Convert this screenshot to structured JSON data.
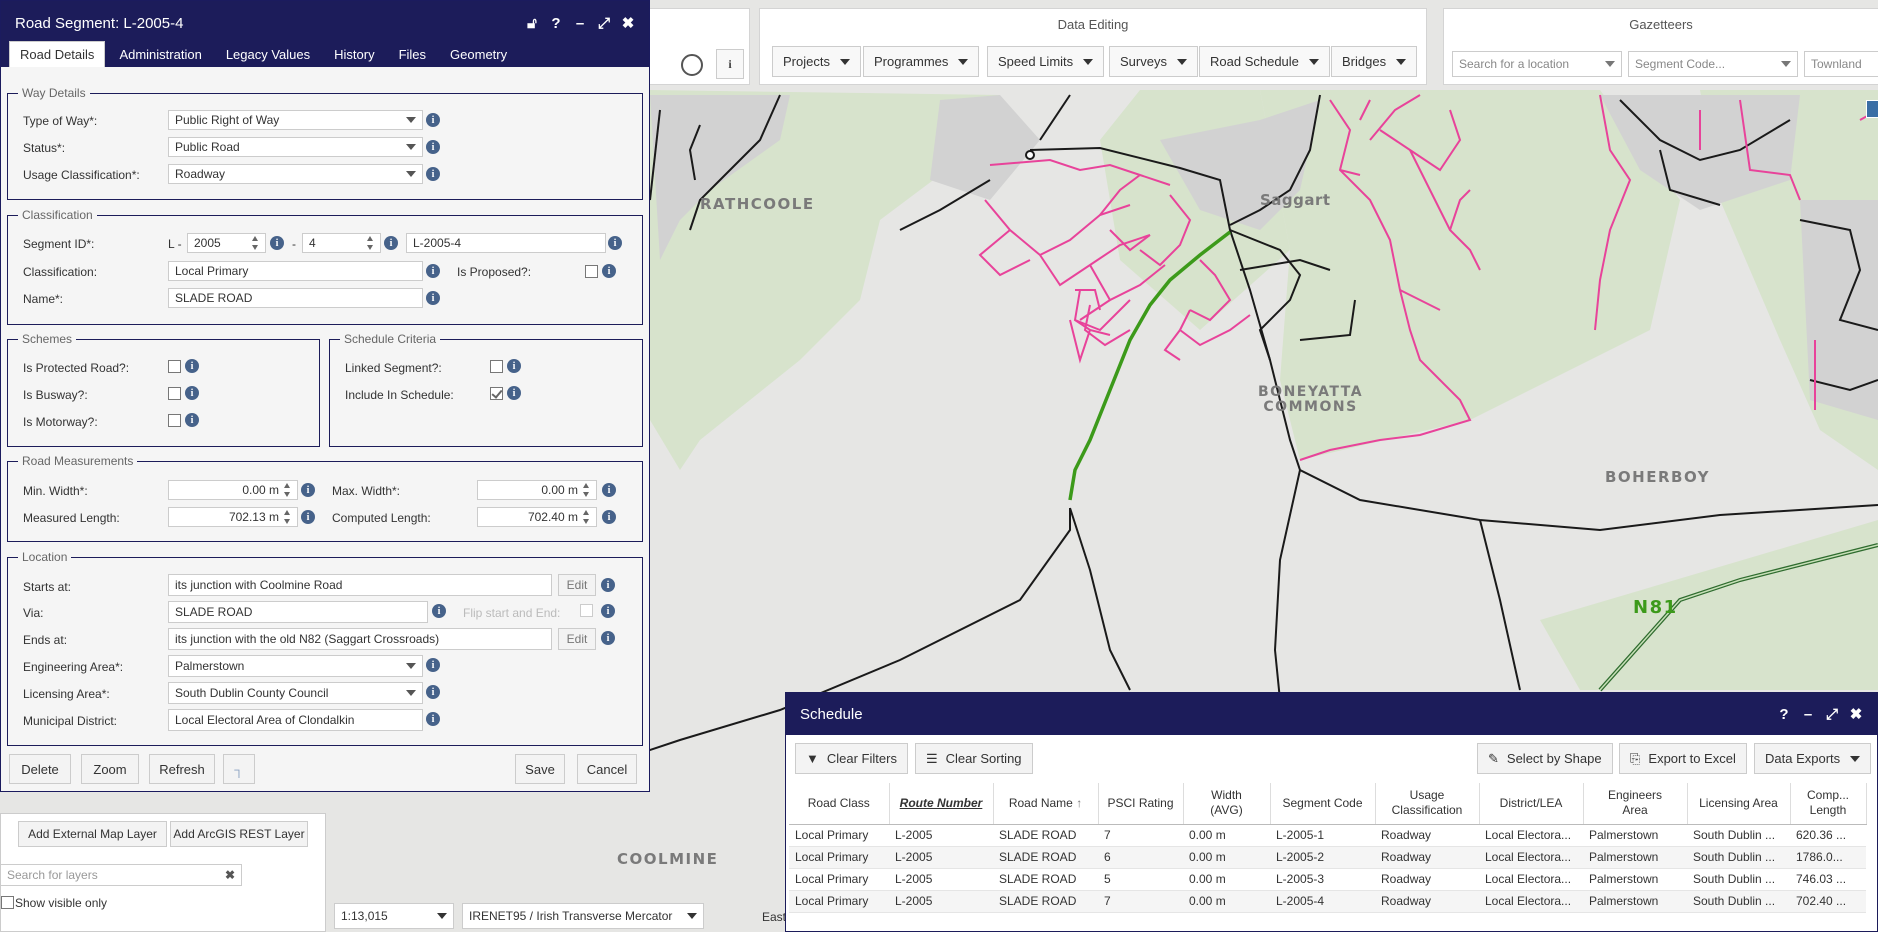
{
  "map": {
    "labels": [
      "RATHCOOLE",
      "Saggart",
      "BONEYATTA\nCOMMONS",
      "BOHERBOY",
      "N81",
      "COOLMINE"
    ]
  },
  "toolbar": {
    "data_editing": {
      "title": "Data Editing",
      "buttons": [
        "Projects",
        "Programmes",
        "Speed Limits",
        "Surveys",
        "Road Schedule",
        "Bridges"
      ]
    },
    "gazetteers": {
      "title": "Gazetteers",
      "location_placeholder": "Search for a location",
      "segment_placeholder": "Segment Code...",
      "townland_placeholder": "Townland"
    }
  },
  "panel": {
    "title": "Road Segment: L-2005-4",
    "tabs": [
      "Road Details",
      "Administration",
      "Legacy Values",
      "History",
      "Files",
      "Geometry"
    ],
    "way_details": {
      "legend": "Way Details",
      "type_of_way_label": "Type of Way*:",
      "type_of_way": "Public Right of Way",
      "status_label": "Status*:",
      "status": "Public Road",
      "usage_label": "Usage Classification*:",
      "usage": "Roadway"
    },
    "classification": {
      "legend": "Classification",
      "segment_id_label": "Segment ID*:",
      "prefix": "L -",
      "route": "2005",
      "dash": "-",
      "seq": "4",
      "full_id": "L-2005-4",
      "classification_label": "Classification:",
      "classification": "Local Primary",
      "proposed_label": "Is Proposed?:",
      "name_label": "Name*:",
      "name": "SLADE ROAD"
    },
    "schemes": {
      "legend": "Schemes",
      "protected_label": "Is Protected Road?:",
      "busway_label": "Is Busway?:",
      "motorway_label": "Is Motorway?:"
    },
    "schedule_criteria": {
      "legend": "Schedule Criteria",
      "linked_label": "Linked Segment?:",
      "include_label": "Include In Schedule:",
      "include_checked": true
    },
    "measurements": {
      "legend": "Road Measurements",
      "min_width_label": "Min. Width*:",
      "min_width": "0.00 m",
      "max_width_label": "Max. Width*:",
      "max_width": "0.00 m",
      "measured_label": "Measured Length:",
      "measured": "702.13 m",
      "computed_label": "Computed Length:",
      "computed": "702.40 m"
    },
    "location": {
      "legend": "Location",
      "starts_label": "Starts at:",
      "starts": "its junction with Coolmine Road",
      "edit": "Edit",
      "via_label": "Via:",
      "via": "SLADE ROAD",
      "flip_label": "Flip start and End:",
      "ends_label": "Ends at:",
      "ends": "its junction with the old N82 (Saggart Crossroads)",
      "eng_area_label": "Engineering Area*:",
      "eng_area": "Palmerstown",
      "lic_area_label": "Licensing Area*:",
      "lic_area": "South Dublin County Council",
      "municipal_label": "Municipal District:",
      "municipal": "Local Electoral Area of Clondalkin"
    },
    "buttons": {
      "delete": "Delete",
      "zoom": "Zoom",
      "refresh": "Refresh",
      "save": "Save",
      "cancel": "Cancel"
    }
  },
  "layers": {
    "add_external": "Add External Map Layer",
    "add_arcgis": "Add ArcGIS REST Layer",
    "search_placeholder": "Search for layers",
    "show_visible": "Show visible only"
  },
  "status": {
    "scale": "1:13,015",
    "projection": "IRENET95 / Irish Transverse Mercator",
    "coords": "East"
  },
  "schedule": {
    "title": "Schedule",
    "clear_filters": "Clear Filters",
    "clear_sorting": "Clear Sorting",
    "select_by_shape": "Select by Shape",
    "export_excel": "Export to Excel",
    "data_exports": "Data Exports",
    "columns": [
      "Road Class",
      "Route Number",
      "Road Name",
      "PSCI Rating",
      "Width\n(AVG)",
      "Segment Code",
      "Usage\nClassification",
      "District/LEA",
      "Engineers\nArea",
      "Licensing Area",
      "Comp...\nLength"
    ],
    "rows": [
      [
        "Local Primary",
        "L-2005",
        "SLADE ROAD",
        "7",
        "0.00 m",
        "L-2005-1",
        "Roadway",
        "Local Electora...",
        "Palmerstown",
        "South Dublin ...",
        "620.36 ..."
      ],
      [
        "Local Primary",
        "L-2005",
        "SLADE ROAD",
        "6",
        "0.00 m",
        "L-2005-2",
        "Roadway",
        "Local Electora...",
        "Palmerstown",
        "South Dublin ...",
        "1786.0..."
      ],
      [
        "Local Primary",
        "L-2005",
        "SLADE ROAD",
        "5",
        "0.00 m",
        "L-2005-3",
        "Roadway",
        "Local Electora...",
        "Palmerstown",
        "South Dublin ...",
        "746.03 ..."
      ],
      [
        "Local Primary",
        "L-2005",
        "SLADE ROAD",
        "7",
        "0.00 m",
        "L-2005-4",
        "Roadway",
        "Local Electora...",
        "Palmerstown",
        "South Dublin ...",
        "702.40 ..."
      ]
    ]
  }
}
